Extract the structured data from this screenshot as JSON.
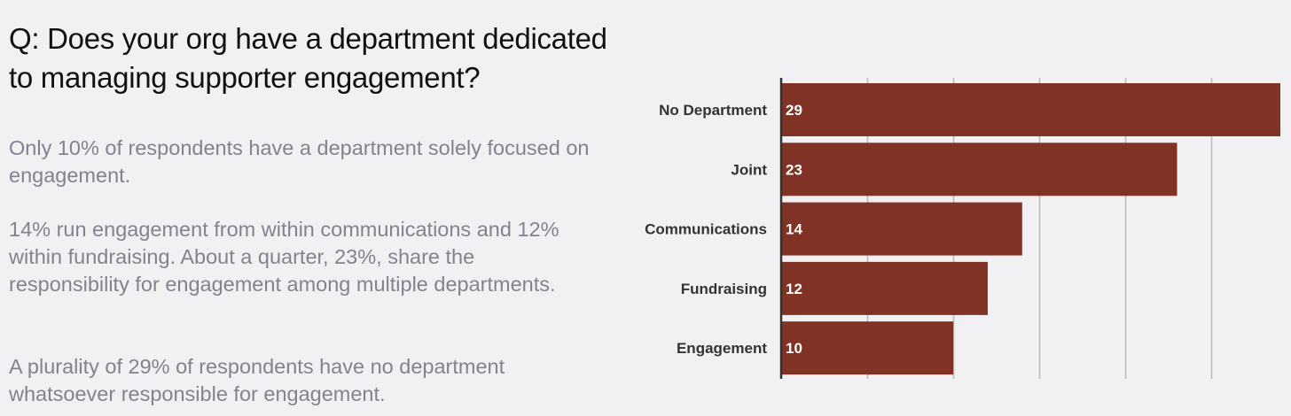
{
  "text": {
    "headline": "Q: Does your org have a department dedicated to managing supporter engagement?",
    "paragraphs": [
      "Only 10% of respondents have a department solely focused on engagement.",
      "14% run engagement from within communications and 12% within fundraising. About a quarter, 23%, share the responsibility for engagement among multiple departments.",
      "A plurality of 29% of respondents have no department whatsoever responsible for engagement."
    ]
  },
  "colors": {
    "background": "#f1f1f3",
    "bar": "#803324",
    "grid": "#b9b9bd",
    "axis": "#333333",
    "category_label": "#333333",
    "value_label": "#ffffff"
  },
  "chart_data": {
    "type": "bar",
    "orientation": "horizontal",
    "categories": [
      "No Department",
      "Joint",
      "Communications",
      "Fundraising",
      "Engagement"
    ],
    "values": [
      29,
      23,
      14,
      12,
      10
    ],
    "xlim": [
      0,
      29
    ],
    "grid": true,
    "data_labels": true
  }
}
